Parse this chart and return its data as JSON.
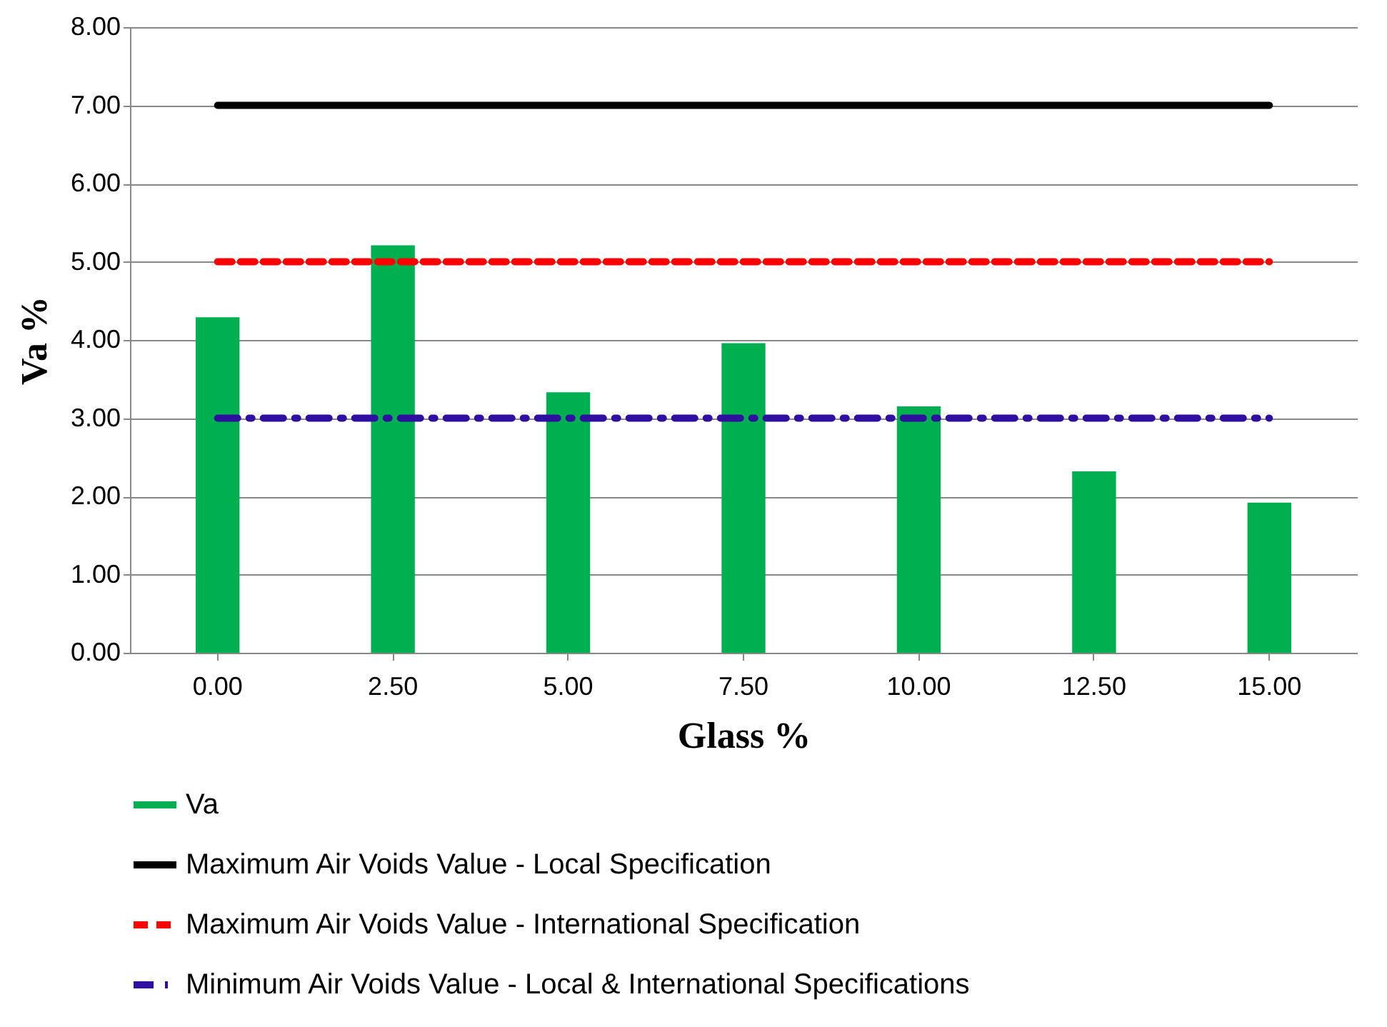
{
  "chart_data": {
    "type": "bar",
    "xlabel": "Glass %",
    "ylabel": "Va %",
    "categories": [
      "0.00",
      "2.50",
      "5.00",
      "7.50",
      "10.00",
      "12.50",
      "15.00"
    ],
    "series": [
      {
        "name": "Va",
        "color": "#00b050",
        "values": [
          4.29,
          5.21,
          3.33,
          3.96,
          3.15,
          2.32,
          1.92
        ]
      },
      {
        "name": "Maximum Air Voids Value - Local Specification",
        "type": "line",
        "color": "#000000",
        "line_style": "solid",
        "values": [
          7,
          7,
          7,
          7,
          7,
          7,
          7
        ]
      },
      {
        "name": "Maximum Air Voids Value - International Specification",
        "type": "line",
        "color": "#ff0000",
        "line_style": "dashed",
        "values": [
          5,
          5,
          5,
          5,
          5,
          5,
          5
        ]
      },
      {
        "name": "Minimum Air Voids Value - Local & International Specifications",
        "type": "line",
        "color": "#2e0fa0",
        "line_style": "dotted",
        "values": [
          3,
          3,
          3,
          3,
          3,
          3,
          3
        ]
      }
    ],
    "ylim": [
      0,
      8
    ],
    "yticks": [
      {
        "value": 0,
        "label": "0.00"
      },
      {
        "value": 1,
        "label": "1.00"
      },
      {
        "value": 2,
        "label": "2.00"
      },
      {
        "value": 3,
        "label": "3.00"
      },
      {
        "value": 4,
        "label": "4.00"
      },
      {
        "value": 5,
        "label": "5.00"
      },
      {
        "value": 6,
        "label": "6.00"
      },
      {
        "value": 7,
        "label": "7.00"
      },
      {
        "value": 8,
        "label": "8.00"
      }
    ],
    "grid": "y",
    "legend": "bottom"
  }
}
